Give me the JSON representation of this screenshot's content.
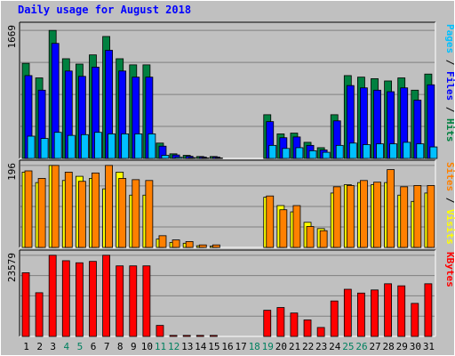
{
  "chart_data": {
    "type": "bar",
    "title": "Daily usage for August 2018",
    "categories": [
      "1",
      "2",
      "3",
      "4",
      "5",
      "6",
      "7",
      "8",
      "9",
      "10",
      "11",
      "12",
      "13",
      "14",
      "15",
      "16",
      "17",
      "18",
      "19",
      "20",
      "21",
      "22",
      "23",
      "24",
      "25",
      "26",
      "27",
      "28",
      "29",
      "30",
      "31"
    ],
    "weekend_days": [
      "4",
      "5",
      "11",
      "12",
      "18",
      "19",
      "25",
      "26"
    ],
    "panels": [
      {
        "id": "top",
        "max_label": "1669",
        "ymax": 1669,
        "axis_legend": [
          {
            "text": "Pages",
            "color": "#00C0FF"
          },
          {
            "text": " / ",
            "color": "#000000"
          },
          {
            "text": "Files",
            "color": "#0000FF"
          },
          {
            "text": " / ",
            "color": "#000000"
          },
          {
            "text": "Hits",
            "color": "#008040"
          }
        ],
        "series": [
          {
            "name": "Hits",
            "color": "#008040",
            "offset": 0,
            "values": [
              1240,
              1050,
              1669,
              1300,
              1230,
              1350,
              1590,
              1300,
              1220,
              1220,
              200,
              60,
              40,
              25,
              25,
              0,
              0,
              0,
              570,
              320,
              330,
              210,
              140,
              570,
              1080,
              1060,
              1040,
              1010,
              1050,
              890,
              1100
            ]
          },
          {
            "name": "Files",
            "color": "#0000FF",
            "offset": 1,
            "values": [
              1080,
              890,
              1500,
              1140,
              1070,
              1190,
              1410,
              1140,
              1060,
              1060,
              160,
              45,
              28,
              18,
              18,
              0,
              0,
              0,
              480,
              270,
              280,
              170,
              110,
              490,
              950,
              920,
              890,
              870,
              920,
              760,
              960
            ]
          },
          {
            "name": "Pages",
            "color": "#00C0FF",
            "offset": 2,
            "values": [
              290,
              260,
              340,
              300,
              310,
              340,
              320,
              320,
              320,
              320,
              40,
              15,
              10,
              6,
              6,
              0,
              0,
              0,
              170,
              130,
              140,
              100,
              80,
              170,
              200,
              180,
              190,
              190,
              210,
              190,
              150
            ]
          }
        ]
      },
      {
        "id": "middle",
        "max_label": "196",
        "ymax": 196,
        "axis_legend": [
          {
            "text": "Sites",
            "color": "#FF8000"
          },
          {
            "text": " / ",
            "color": "#000000"
          },
          {
            "text": "Visits",
            "color": "#FFFF00"
          }
        ],
        "series": [
          {
            "name": "Visits",
            "color": "#FFFF00",
            "offset": 0,
            "values": [
              180,
              155,
              196,
              160,
              170,
              165,
              140,
              180,
              125,
              125,
              20,
              12,
              10,
              4,
              3,
              0,
              0,
              0,
              120,
              100,
              85,
              60,
              45,
              130,
              150,
              155,
              150,
              155,
              125,
              110,
              130
            ]
          },
          {
            "name": "Sites",
            "color": "#FF8000",
            "offset": 1,
            "values": [
              183,
              165,
              196,
              180,
              158,
              178,
              196,
              165,
              162,
              160,
              28,
              18,
              14,
              6,
              6,
              0,
              0,
              0,
              123,
              90,
              100,
              50,
              40,
              145,
              148,
              160,
              156,
              186,
              145,
              148,
              148
            ]
          }
        ]
      },
      {
        "id": "bottom",
        "max_label": "23579",
        "ymax": 23579,
        "axis_legend": [
          {
            "text": "KBytes",
            "color": "#FF0000"
          }
        ],
        "series": [
          {
            "name": "KBytes",
            "color": "#FF0000",
            "offset": 0,
            "values": [
              18500,
              12700,
              23579,
              22000,
              21400,
              21800,
              23579,
              20500,
              20500,
              20500,
              3200,
              300,
              300,
              300,
              300,
              0,
              0,
              0,
              7600,
              8400,
              6800,
              4800,
              2600,
              10300,
              13700,
              12600,
              13500,
              15300,
              14700,
              9600,
              15300
            ]
          }
        ]
      }
    ]
  }
}
